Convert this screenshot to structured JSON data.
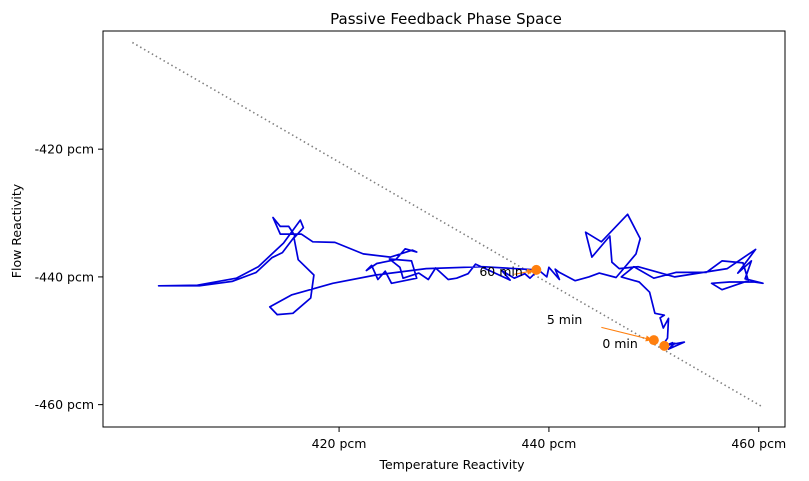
{
  "chart_data": {
    "type": "line",
    "title": "Passive Feedback Phase Space",
    "xlabel": "Temperature Reactivity",
    "ylabel": "Flow Reactivity",
    "xlim": [
      397.5,
      462.5
    ],
    "ylim": [
      -463.5,
      -401.5
    ],
    "x_ticks": [
      {
        "value": 420,
        "label": "420 pcm"
      },
      {
        "value": 440,
        "label": "440 pcm"
      },
      {
        "value": 460,
        "label": "460 pcm"
      }
    ],
    "y_ticks": [
      {
        "value": -420,
        "label": "-420 pcm"
      },
      {
        "value": -440,
        "label": "-440 pcm"
      },
      {
        "value": -460,
        "label": "-460 pcm"
      }
    ],
    "grid": false,
    "reference_line": {
      "style": "dotted",
      "color": "#808080",
      "points": [
        [
          400.3,
          -403.3
        ],
        [
          460.3,
          -460.3
        ]
      ]
    },
    "trajectory": {
      "color": "#0000dd",
      "points": [
        [
          450.8,
          -451.0
        ],
        [
          452.0,
          -450.4
        ],
        [
          451.4,
          -451.3
        ],
        [
          452.9,
          -450.2
        ],
        [
          451.3,
          -450.7
        ],
        [
          451.8,
          -450.3
        ],
        [
          450.7,
          -451.0
        ],
        [
          451.3,
          -449.6
        ],
        [
          451.4,
          -446.5
        ],
        [
          450.9,
          -448.0
        ],
        [
          450.6,
          -446.4
        ],
        [
          451.0,
          -446.0
        ],
        [
          450.1,
          -445.7
        ],
        [
          449.6,
          -442.4
        ],
        [
          448.6,
          -440.8
        ],
        [
          446.9,
          -440.0
        ],
        [
          448.1,
          -438.4
        ],
        [
          450.0,
          -440.2
        ],
        [
          452.1,
          -439.3
        ],
        [
          455.0,
          -439.3
        ],
        [
          456.5,
          -437.5
        ],
        [
          458.5,
          -437.8
        ],
        [
          459.0,
          -440.6
        ],
        [
          456.5,
          -442.0
        ],
        [
          455.5,
          -441.0
        ],
        [
          457.2,
          -440.8
        ],
        [
          459.6,
          -440.8
        ],
        [
          460.4,
          -441.0
        ],
        [
          458.7,
          -440.3
        ],
        [
          459.3,
          -437.5
        ],
        [
          458.0,
          -439.4
        ],
        [
          459.7,
          -435.7
        ],
        [
          457.0,
          -438.7
        ],
        [
          452.0,
          -440.0
        ],
        [
          448.5,
          -438.4
        ],
        [
          446.7,
          -438.7
        ],
        [
          446.0,
          -437.7
        ],
        [
          445.8,
          -433.6
        ],
        [
          444.1,
          -436.9
        ],
        [
          443.5,
          -433.0
        ],
        [
          445.0,
          -434.5
        ],
        [
          447.5,
          -430.2
        ],
        [
          448.7,
          -434.0
        ],
        [
          448.3,
          -436.4
        ],
        [
          446.4,
          -440.1
        ],
        [
          444.8,
          -439.4
        ],
        [
          443.8,
          -440.0
        ],
        [
          442.5,
          -440.6
        ],
        [
          441.0,
          -439.3
        ],
        [
          440.6,
          -438.8
        ],
        [
          441.0,
          -440.4
        ],
        [
          440.0,
          -438.5
        ],
        [
          439.8,
          -440.0
        ],
        [
          439.0,
          -438.9
        ],
        [
          438.2,
          -440.2
        ],
        [
          437.7,
          -439.5
        ],
        [
          436.7,
          -440.2
        ],
        [
          435.5,
          -439.0
        ],
        [
          436.3,
          -440.5
        ],
        [
          433.0,
          -438.0
        ],
        [
          432.3,
          -439.5
        ],
        [
          431.2,
          -440.2
        ],
        [
          430.4,
          -440.4
        ],
        [
          429.2,
          -438.6
        ],
        [
          428.5,
          -440.4
        ],
        [
          427.6,
          -439.4
        ],
        [
          426.1,
          -440.2
        ],
        [
          425.8,
          -438.5
        ],
        [
          424.8,
          -437.2
        ],
        [
          426.9,
          -437.5
        ],
        [
          427.4,
          -440.2
        ],
        [
          425.0,
          -441.0
        ],
        [
          424.4,
          -439.1
        ],
        [
          423.7,
          -440.4
        ],
        [
          423.1,
          -438.2
        ],
        [
          422.6,
          -439.0
        ],
        [
          423.6,
          -437.9
        ],
        [
          425.4,
          -437.3
        ],
        [
          426.3,
          -435.6
        ],
        [
          427.4,
          -436.1
        ],
        [
          427.0,
          -435.8
        ],
        [
          424.9,
          -436.9
        ],
        [
          422.3,
          -436.4
        ],
        [
          419.6,
          -434.6
        ],
        [
          417.5,
          -434.5
        ],
        [
          416.4,
          -433.3
        ],
        [
          414.4,
          -433.3
        ],
        [
          413.7,
          -430.7
        ],
        [
          414.4,
          -432.1
        ],
        [
          415.2,
          -432.1
        ],
        [
          415.8,
          -433.6
        ],
        [
          414.6,
          -436.2
        ],
        [
          413.6,
          -437.0
        ],
        [
          412.1,
          -439.3
        ],
        [
          409.8,
          -440.7
        ],
        [
          406.7,
          -441.4
        ],
        [
          402.8,
          -441.4
        ],
        [
          406.5,
          -441.3
        ],
        [
          410.2,
          -440.2
        ],
        [
          412.3,
          -438.4
        ],
        [
          414.7,
          -434.7
        ],
        [
          416.3,
          -431.1
        ],
        [
          416.6,
          -432.3
        ],
        [
          415.7,
          -433.9
        ],
        [
          416.1,
          -437.3
        ],
        [
          417.6,
          -439.7
        ],
        [
          417.3,
          -443.3
        ],
        [
          415.6,
          -445.7
        ],
        [
          414.1,
          -445.9
        ],
        [
          413.4,
          -444.7
        ],
        [
          415.5,
          -442.8
        ],
        [
          419.4,
          -441.0
        ],
        [
          423.5,
          -439.7
        ],
        [
          428.3,
          -438.7
        ],
        [
          433.7,
          -438.4
        ],
        [
          438.8,
          -438.9
        ]
      ]
    },
    "markers": [
      {
        "label": "0 min",
        "x": 451.0,
        "y": -450.8,
        "color": "#ff7f0e"
      },
      {
        "label": "5 min",
        "x": 450.0,
        "y": -449.9,
        "color": "#ff7f0e"
      },
      {
        "label": "60 min",
        "x": 438.8,
        "y": -438.9,
        "color": "#ff7f0e"
      }
    ],
    "arrows": [
      {
        "from": [
          445.0,
          -447.9
        ],
        "to": [
          449.9,
          -449.9
        ],
        "color": "#ff7f0e"
      },
      {
        "from": [
          436.7,
          -439.6
        ],
        "to": [
          438.6,
          -439.0
        ],
        "color": "#ff7f0e"
      }
    ]
  }
}
